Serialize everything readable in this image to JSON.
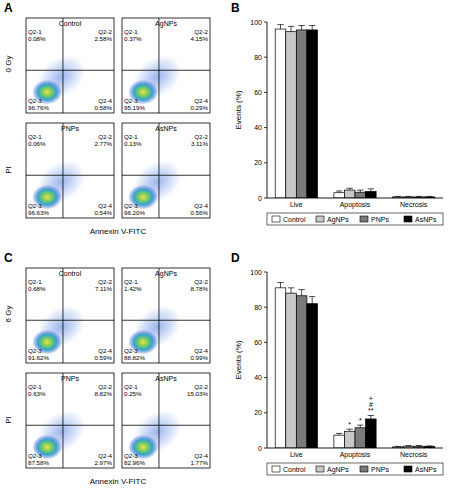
{
  "chart_data": [
    {
      "type": "quadrant",
      "panel_label": "A",
      "row_label": "0 Gy",
      "xlabel": "Annexin V-FITC",
      "ylabel": "PI",
      "tick_labels": false,
      "quadrant_names": [
        "Q2-1",
        "Q2-2",
        "Q2-3",
        "Q2-4"
      ],
      "plots": [
        {
          "title": "Control",
          "values": [
            0.08,
            2.58,
            96.76,
            0.58
          ],
          "value_labels": [
            "0.08%",
            "2.58%",
            "96.76%",
            "0.58%"
          ]
        },
        {
          "title": "AgNPs",
          "values": [
            0.37,
            4.15,
            95.19,
            0.29
          ],
          "value_labels": [
            "0.37%",
            "4.15%",
            "95.19%",
            "0.29%"
          ]
        },
        {
          "title": "PNPs",
          "values": [
            0.06,
            2.77,
            96.63,
            0.54
          ],
          "value_labels": [
            "0.06%",
            "2.77%",
            "96.63%",
            "0.54%"
          ]
        },
        {
          "title": "AsNPs",
          "values": [
            0.13,
            3.11,
            96.2,
            0.56
          ],
          "value_labels": [
            "0.13%",
            "3.11%",
            "96.20%",
            "0.56%"
          ]
        }
      ]
    },
    {
      "type": "bar",
      "panel_label": "B",
      "ylabel": "Events (%)",
      "categories": [
        "Live",
        "Apoptosis",
        "Necrosis"
      ],
      "ylim": [
        0,
        100
      ],
      "yticks": [
        0,
        20,
        40,
        60,
        80,
        100
      ],
      "legend": "bottom",
      "series": [
        {
          "name": "Control",
          "color": "#ffffff",
          "values": [
            96,
            3,
            0.6
          ],
          "errors": [
            2.5,
            1,
            0.3
          ]
        },
        {
          "name": "AgNPs",
          "color": "#c8c8c8",
          "values": [
            94.5,
            4.5,
            0.6
          ],
          "errors": [
            3,
            1,
            0.3
          ]
        },
        {
          "name": "PNPs",
          "color": "#7a7a7a",
          "values": [
            95.5,
            3.3,
            0.6
          ],
          "errors": [
            2.5,
            1.2,
            0.3
          ]
        },
        {
          "name": "AsNPs",
          "color": "#000000",
          "values": [
            95.5,
            3.7,
            0.6
          ],
          "errors": [
            2.5,
            1.5,
            0.3
          ]
        }
      ]
    },
    {
      "type": "quadrant",
      "panel_label": "C",
      "row_label": "6 Gy",
      "xlabel": "Annexin V-FITC",
      "ylabel": "PI",
      "tick_labels": false,
      "quadrant_names": [
        "Q2-1",
        "Q2-2",
        "Q2-3",
        "Q2-4"
      ],
      "plots": [
        {
          "title": "Control",
          "values": [
            0.68,
            7.11,
            91.62,
            0.59
          ],
          "value_labels": [
            "0.68%",
            "7.11%",
            "91.62%",
            "0.59%"
          ]
        },
        {
          "title": "AgNPs",
          "values": [
            1.42,
            8.78,
            88.82,
            0.99
          ],
          "value_labels": [
            "1.42%",
            "8.78%",
            "88.82%",
            "0.99%"
          ]
        },
        {
          "title": "PNPs",
          "values": [
            0.63,
            8.82,
            87.58,
            2.97
          ],
          "value_labels": [
            "0.63%",
            "8.82%",
            "87.58%",
            "2.97%"
          ]
        },
        {
          "title": "AsNPs",
          "values": [
            0.25,
            15.03,
            82.96,
            1.77
          ],
          "value_labels": [
            "0.25%",
            "15.03%",
            "82.96%",
            "1.77%"
          ]
        }
      ]
    },
    {
      "type": "bar",
      "panel_label": "D",
      "ylabel": "Events (%)",
      "categories": [
        "Live",
        "Apoptosis",
        "Necrosis"
      ],
      "ylim": [
        0,
        100
      ],
      "yticks": [
        0,
        20,
        40,
        60,
        80,
        100
      ],
      "legend": "bottom",
      "series": [
        {
          "name": "Control",
          "color": "#ffffff",
          "values": [
            91,
            7.3,
            0.6
          ],
          "errors": [
            3,
            1,
            0.3
          ],
          "significance": [
            null,
            null,
            null
          ]
        },
        {
          "name": "AgNPs",
          "color": "#c8c8c8",
          "values": [
            88,
            9.5,
            1
          ],
          "errors": [
            3,
            1.2,
            0.4
          ],
          "significance": [
            null,
            [
              "*"
            ],
            null
          ]
        },
        {
          "name": "PNPs",
          "color": "#7a7a7a",
          "values": [
            86.5,
            11.5,
            1
          ],
          "errors": [
            3.5,
            1.5,
            0.4
          ],
          "significance": [
            null,
            [
              "*"
            ],
            null
          ]
        },
        {
          "name": "AsNPs",
          "color": "#000000",
          "values": [
            82,
            16.5,
            0.9
          ],
          "errors": [
            4,
            2,
            0.3
          ],
          "significance": [
            null,
            [
              "+",
              "#",
              "**"
            ],
            null
          ]
        }
      ]
    }
  ]
}
